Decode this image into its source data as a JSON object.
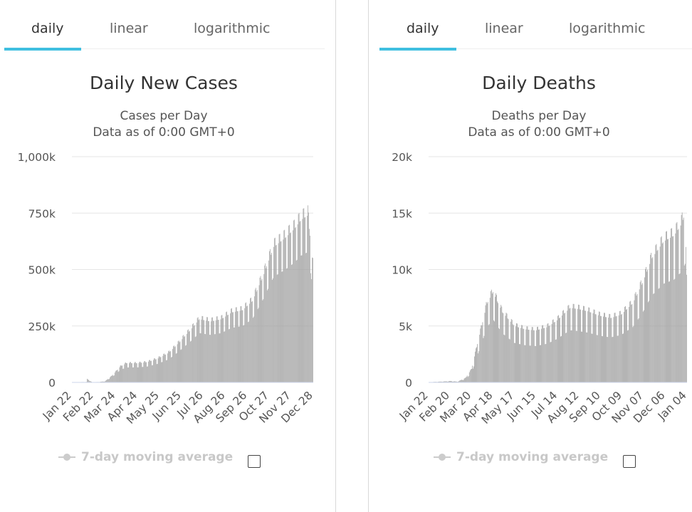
{
  "tabs": [
    "daily",
    "linear",
    "logarithmic"
  ],
  "active_tab": "daily",
  "colors": {
    "accent": "#3fbfe0",
    "bar": "#a0a0a0",
    "grid": "#e6e6e6"
  },
  "legend_label": "7-day moving average",
  "chart_data": [
    {
      "type": "bar",
      "title": "Daily New Cases",
      "subtitle": [
        "Cases per Day",
        "Data as of 0:00 GMT+0"
      ],
      "y_ticks": [
        "0",
        "250k",
        "500k",
        "750k",
        "1,000k"
      ],
      "ylim": [
        0,
        1000000
      ],
      "x_ticks": [
        "Jan 22",
        "Feb 22",
        "Mar 24",
        "Apr 24",
        "May 25",
        "Jun 25",
        "Jul 26",
        "Aug 26",
        "Sep 26",
        "Oct 27",
        "Nov 27",
        "Dec 28"
      ],
      "x_range": [
        "2020-01-22",
        "2021-01-06"
      ],
      "series_anchors": [
        [
          "2020-01-22",
          1000
        ],
        [
          "2020-02-12",
          2000
        ],
        [
          "2020-02-13",
          15000
        ],
        [
          "2020-02-20",
          1000
        ],
        [
          "2020-03-01",
          2000
        ],
        [
          "2020-03-10",
          5000
        ],
        [
          "2020-03-20",
          30000
        ],
        [
          "2020-04-01",
          70000
        ],
        [
          "2020-04-10",
          85000
        ],
        [
          "2020-04-25",
          85000
        ],
        [
          "2020-05-10",
          90000
        ],
        [
          "2020-05-25",
          105000
        ],
        [
          "2020-06-10",
          130000
        ],
        [
          "2020-06-25",
          175000
        ],
        [
          "2020-07-10",
          225000
        ],
        [
          "2020-07-25",
          280000
        ],
        [
          "2020-08-10",
          270000
        ],
        [
          "2020-08-26",
          280000
        ],
        [
          "2020-09-10",
          310000
        ],
        [
          "2020-09-26",
          320000
        ],
        [
          "2020-10-10",
          360000
        ],
        [
          "2020-10-27",
          480000
        ],
        [
          "2020-11-10",
          600000
        ],
        [
          "2020-11-27",
          640000
        ],
        [
          "2020-12-10",
          680000
        ],
        [
          "2020-12-20",
          720000
        ],
        [
          "2020-12-30",
          740000
        ],
        [
          "2021-01-03",
          620000
        ],
        [
          "2021-01-06",
          520000
        ]
      ],
      "weekly_dip": 0.22
    },
    {
      "type": "bar",
      "title": "Daily Deaths",
      "subtitle": [
        "Deaths per Day",
        "Data as of 0:00 GMT+0"
      ],
      "y_ticks": [
        "0",
        "5k",
        "10k",
        "15k",
        "20k"
      ],
      "ylim": [
        0,
        20000
      ],
      "x_ticks": [
        "Jan 22",
        "Feb 20",
        "Mar 20",
        "Apr 18",
        "May 17",
        "Jun 15",
        "Jul 14",
        "Aug 12",
        "Sep 10",
        "Oct 09",
        "Nov 07",
        "Dec 06",
        "Jan 04"
      ],
      "x_range": [
        "2020-01-22",
        "2021-01-06"
      ],
      "series_anchors": [
        [
          "2020-01-22",
          20
        ],
        [
          "2020-02-10",
          80
        ],
        [
          "2020-02-20",
          120
        ],
        [
          "2020-03-01",
          70
        ],
        [
          "2020-03-12",
          400
        ],
        [
          "2020-03-20",
          1200
        ],
        [
          "2020-04-01",
          4500
        ],
        [
          "2020-04-10",
          7000
        ],
        [
          "2020-04-18",
          8000
        ],
        [
          "2020-05-01",
          6200
        ],
        [
          "2020-05-17",
          5000
        ],
        [
          "2020-06-01",
          4700
        ],
        [
          "2020-06-15",
          4600
        ],
        [
          "2020-07-01",
          4900
        ],
        [
          "2020-07-14",
          5500
        ],
        [
          "2020-08-01",
          6600
        ],
        [
          "2020-08-12",
          6500
        ],
        [
          "2020-08-25",
          6300
        ],
        [
          "2020-09-10",
          5900
        ],
        [
          "2020-09-25",
          5700
        ],
        [
          "2020-10-09",
          6000
        ],
        [
          "2020-10-25",
          7000
        ],
        [
          "2020-11-07",
          8800
        ],
        [
          "2020-11-20",
          11000
        ],
        [
          "2020-12-06",
          12500
        ],
        [
          "2020-12-20",
          13000
        ],
        [
          "2020-12-30",
          14000
        ],
        [
          "2021-01-04",
          15000
        ],
        [
          "2021-01-06",
          9000
        ]
      ],
      "weekly_dip": 0.3
    }
  ]
}
